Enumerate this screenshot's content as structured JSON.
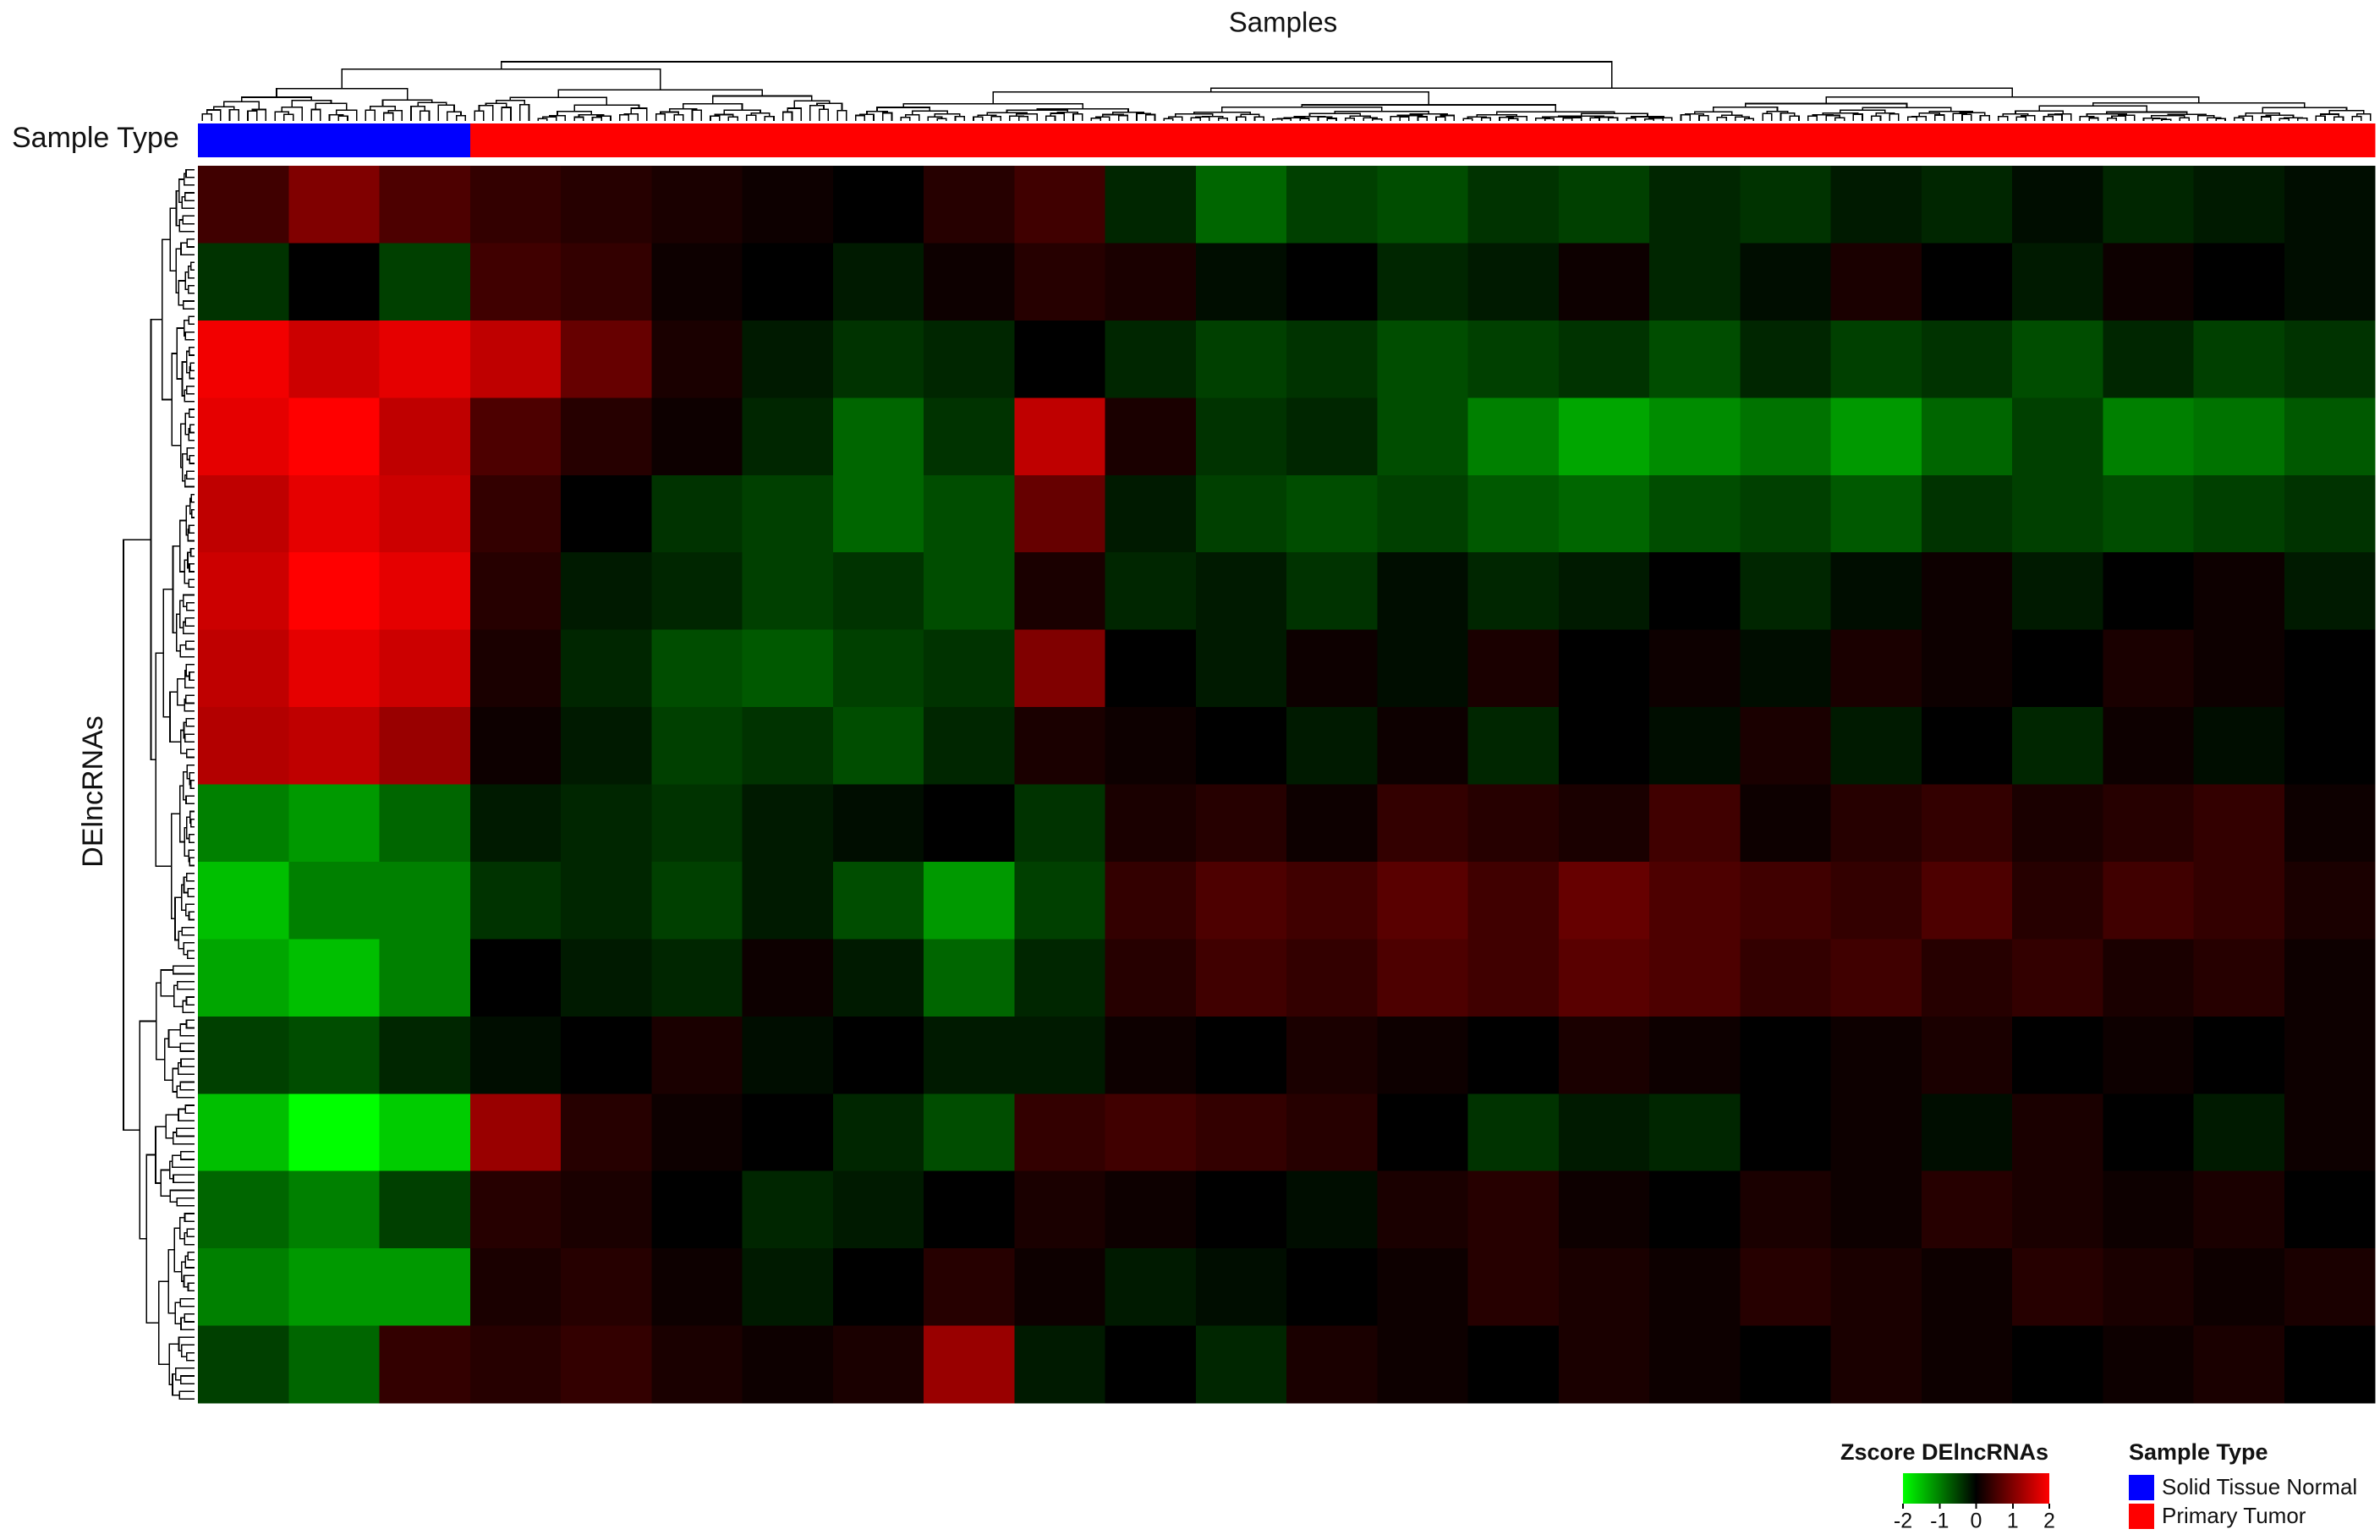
{
  "chart_data": {
    "type": "heatmap",
    "title": "Samples",
    "ylabel": "DElncRNAs",
    "zlim": [
      -2,
      2
    ],
    "colorscale": [
      "#00ff00",
      "#000000",
      "#ff0000"
    ],
    "colorbar": {
      "title": "Zscore DElncRNAs",
      "ticks": [
        -2,
        -1,
        0,
        1,
        2
      ]
    },
    "annotation": {
      "title": "Sample Type",
      "levels": [
        {
          "name": "Solid Tissue Normal",
          "color": "#0000ff"
        },
        {
          "name": "Primary Tumor",
          "color": "#ff0000"
        }
      ],
      "values": [
        0,
        0,
        0,
        1,
        1,
        1,
        1,
        1,
        1,
        1,
        1,
        1,
        1,
        1,
        1,
        1,
        1,
        1,
        1,
        1,
        1,
        1,
        1,
        1
      ]
    },
    "z": [
      [
        0.5,
        1,
        0.6,
        0.4,
        0.3,
        0.2,
        0.1,
        0,
        0.3,
        0.5,
        -0.3,
        -0.8,
        -0.5,
        -0.6,
        -0.4,
        -0.5,
        -0.3,
        -0.4,
        -0.2,
        -0.3,
        -0.1,
        -0.3,
        -0.2,
        -0.1
      ],
      [
        -0.4,
        0,
        -0.5,
        0.5,
        0.4,
        0.1,
        0,
        -0.2,
        0.1,
        0.3,
        0.2,
        -0.1,
        0,
        -0.3,
        -0.2,
        0.1,
        -0.3,
        -0.1,
        0.2,
        0,
        -0.2,
        0.1,
        0,
        -0.1
      ],
      [
        1.9,
        1.6,
        1.8,
        1.5,
        0.8,
        0.2,
        -0.2,
        -0.4,
        -0.3,
        0,
        -0.3,
        -0.5,
        -0.4,
        -0.6,
        -0.5,
        -0.4,
        -0.6,
        -0.3,
        -0.5,
        -0.4,
        -0.6,
        -0.3,
        -0.5,
        -0.4
      ],
      [
        1.8,
        2,
        1.5,
        0.6,
        0.3,
        0.1,
        -0.3,
        -0.8,
        -0.4,
        1.5,
        0.2,
        -0.4,
        -0.3,
        -0.6,
        -1,
        -1.3,
        -1.1,
        -0.9,
        -1.2,
        -0.8,
        -0.5,
        -1,
        -0.9,
        -0.7
      ],
      [
        1.5,
        1.8,
        1.6,
        0.4,
        0,
        -0.4,
        -0.5,
        -0.8,
        -0.6,
        0.8,
        -0.2,
        -0.5,
        -0.6,
        -0.5,
        -0.7,
        -0.8,
        -0.6,
        -0.5,
        -0.7,
        -0.4,
        -0.5,
        -0.6,
        -0.5,
        -0.4
      ],
      [
        1.6,
        2,
        1.8,
        0.3,
        -0.2,
        -0.3,
        -0.5,
        -0.4,
        -0.6,
        0.2,
        -0.3,
        -0.2,
        -0.4,
        -0.1,
        -0.3,
        -0.2,
        0,
        -0.3,
        -0.1,
        0.1,
        -0.2,
        0,
        0.1,
        -0.2
      ],
      [
        1.5,
        1.8,
        1.6,
        0.2,
        -0.3,
        -0.6,
        -0.7,
        -0.5,
        -0.4,
        1,
        0,
        -0.2,
        0.1,
        -0.1,
        0.2,
        0,
        0.1,
        -0.1,
        0.2,
        0.1,
        0,
        0.2,
        0.1,
        0
      ],
      [
        1.4,
        1.5,
        1.2,
        0.1,
        -0.2,
        -0.5,
        -0.4,
        -0.6,
        -0.3,
        0.2,
        0.1,
        0,
        -0.2,
        0.1,
        -0.3,
        0,
        -0.1,
        0.2,
        -0.2,
        0,
        -0.3,
        0.1,
        -0.1,
        0
      ],
      [
        -1,
        -1.2,
        -0.8,
        -0.2,
        -0.3,
        -0.4,
        -0.2,
        -0.1,
        0,
        -0.4,
        0.2,
        0.3,
        0.1,
        0.4,
        0.3,
        0.2,
        0.5,
        0.1,
        0.3,
        0.4,
        0.2,
        0.3,
        0.4,
        0.1
      ],
      [
        -1.5,
        -1,
        -1,
        -0.4,
        -0.3,
        -0.5,
        -0.2,
        -0.6,
        -1.2,
        -0.5,
        0.4,
        0.6,
        0.5,
        0.7,
        0.5,
        0.8,
        0.6,
        0.5,
        0.4,
        0.6,
        0.3,
        0.5,
        0.4,
        0.2
      ],
      [
        -1.3,
        -1.5,
        -1,
        0,
        -0.2,
        -0.3,
        0.1,
        -0.2,
        -0.8,
        -0.3,
        0.3,
        0.5,
        0.4,
        0.6,
        0.5,
        0.7,
        0.6,
        0.4,
        0.5,
        0.3,
        0.4,
        0.2,
        0.3,
        0.1
      ],
      [
        -0.5,
        -0.6,
        -0.3,
        -0.1,
        0,
        0.2,
        -0.1,
        0,
        -0.2,
        -0.2,
        0.1,
        0,
        0.2,
        0.1,
        0,
        0.2,
        0.1,
        0,
        0.1,
        0.2,
        0,
        0.1,
        0,
        0.1
      ],
      [
        -1.5,
        -2,
        -1.6,
        1.2,
        0.3,
        0.1,
        0,
        -0.3,
        -0.6,
        0.4,
        0.5,
        0.4,
        0.3,
        0,
        -0.4,
        -0.2,
        -0.3,
        0,
        0.1,
        -0.1,
        0.2,
        0,
        -0.2,
        0.1
      ],
      [
        -0.8,
        -1,
        -0.5,
        0.3,
        0.2,
        0,
        -0.3,
        -0.2,
        0,
        0.2,
        0.1,
        0,
        -0.1,
        0.2,
        0.3,
        0.1,
        0,
        0.2,
        0.1,
        0.3,
        0.2,
        0.1,
        0.2,
        0
      ],
      [
        -1,
        -1.2,
        -1.2,
        0.2,
        0.3,
        0.1,
        -0.2,
        0,
        0.3,
        0.1,
        -0.2,
        -0.1,
        0,
        0.1,
        0.3,
        0.2,
        0.1,
        0.3,
        0.2,
        0.1,
        0.3,
        0.2,
        0.1,
        0.2
      ],
      [
        -0.5,
        -0.8,
        0.4,
        0.3,
        0.4,
        0.2,
        0.1,
        0.2,
        1.2,
        -0.2,
        0,
        -0.3,
        0.2,
        0.1,
        0,
        0.2,
        0.1,
        0,
        0.2,
        0.1,
        0,
        0.1,
        0.2,
        0
      ]
    ]
  }
}
